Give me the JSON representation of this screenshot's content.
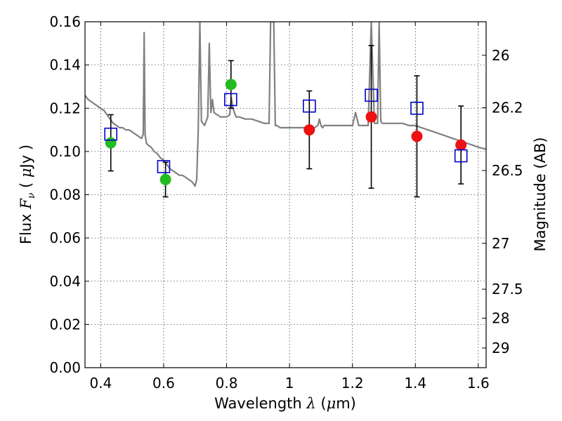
{
  "chart_data": {
    "type": "scatter",
    "xlabel": {
      "prefix": "Wavelength  ",
      "symbol": "λ",
      "unit_open": " (",
      "unit_mu": "μ",
      "unit_rest": "m)"
    },
    "ylabel": {
      "prefix": "Flux  ",
      "symbol": "F",
      "sub": "ν",
      "unit_open": "  ( ",
      "unit_mu": "μ",
      "unit_rest": "Jy )"
    },
    "y2label": "Magnitude (AB)",
    "xlim": [
      0.35,
      1.625
    ],
    "ylim": [
      0.0,
      0.16
    ],
    "grid": true,
    "xticks": [
      {
        "value": 0.4,
        "label": "0.4"
      },
      {
        "value": 0.6,
        "label": "0.6"
      },
      {
        "value": 0.8,
        "label": "0.8"
      },
      {
        "value": 1.0,
        "label": "1"
      },
      {
        "value": 1.2,
        "label": "1.2"
      },
      {
        "value": 1.4,
        "label": "1.4"
      },
      {
        "value": 1.6,
        "label": "1.6"
      }
    ],
    "yticks": [
      {
        "value": 0.0,
        "label": "0.00"
      },
      {
        "value": 0.02,
        "label": "0.02"
      },
      {
        "value": 0.04,
        "label": "0.04"
      },
      {
        "value": 0.06,
        "label": "0.06"
      },
      {
        "value": 0.08,
        "label": "0.08"
      },
      {
        "value": 0.1,
        "label": "0.10"
      },
      {
        "value": 0.12,
        "label": "0.12"
      },
      {
        "value": 0.14,
        "label": "0.14"
      },
      {
        "value": 0.16,
        "label": "0.16"
      }
    ],
    "y2ticks": [
      {
        "flux": 0.1445,
        "label": "26"
      },
      {
        "flux": 0.1202,
        "label": "26.2"
      },
      {
        "flux": 0.0912,
        "label": "26.5"
      },
      {
        "flux": 0.0575,
        "label": "27"
      },
      {
        "flux": 0.0363,
        "label": "27.5"
      },
      {
        "flux": 0.0229,
        "label": "28"
      },
      {
        "flux": 0.0091,
        "label": "29"
      }
    ],
    "series": [
      {
        "kind": "model-spectrum",
        "color": "#808080",
        "x": [
          0.35,
          0.36,
          0.37,
          0.38,
          0.39,
          0.4,
          0.41,
          0.42,
          0.43,
          0.44,
          0.45,
          0.46,
          0.47,
          0.48,
          0.49,
          0.5,
          0.51,
          0.52,
          0.53,
          0.535,
          0.538,
          0.541,
          0.545,
          0.55,
          0.56,
          0.57,
          0.58,
          0.59,
          0.6,
          0.61,
          0.62,
          0.63,
          0.64,
          0.65,
          0.66,
          0.67,
          0.68,
          0.69,
          0.695,
          0.7,
          0.705,
          0.71,
          0.715,
          0.72,
          0.73,
          0.74,
          0.745,
          0.75,
          0.755,
          0.76,
          0.77,
          0.78,
          0.79,
          0.8,
          0.81,
          0.815,
          0.82,
          0.825,
          0.83,
          0.84,
          0.86,
          0.88,
          0.9,
          0.92,
          0.935,
          0.94,
          0.95,
          0.955,
          0.96,
          0.97,
          0.98,
          1.0,
          1.02,
          1.04,
          1.06,
          1.08,
          1.09,
          1.095,
          1.1,
          1.105,
          1.11,
          1.12,
          1.14,
          1.16,
          1.18,
          1.2,
          1.21,
          1.22,
          1.23,
          1.24,
          1.25,
          1.26,
          1.27,
          1.28,
          1.285,
          1.29,
          1.295,
          1.3,
          1.32,
          1.34,
          1.36,
          1.38,
          1.4,
          1.42,
          1.44,
          1.46,
          1.48,
          1.5,
          1.52,
          1.54,
          1.56,
          1.58,
          1.6,
          1.625
        ],
        "y": [
          0.126,
          0.124,
          0.123,
          0.122,
          0.121,
          0.12,
          0.119,
          0.117,
          0.115,
          0.113,
          0.112,
          0.111,
          0.111,
          0.11,
          0.11,
          0.109,
          0.108,
          0.107,
          0.106,
          0.108,
          0.155,
          0.108,
          0.104,
          0.103,
          0.102,
          0.1,
          0.099,
          0.097,
          0.096,
          0.094,
          0.092,
          0.091,
          0.09,
          0.089,
          0.089,
          0.088,
          0.087,
          0.086,
          0.085,
          0.084,
          0.087,
          0.11,
          0.16,
          0.114,
          0.112,
          0.116,
          0.15,
          0.118,
          0.124,
          0.118,
          0.117,
          0.116,
          0.116,
          0.116,
          0.117,
          0.125,
          0.12,
          0.118,
          0.116,
          0.116,
          0.115,
          0.115,
          0.114,
          0.113,
          0.113,
          0.16,
          0.16,
          0.112,
          0.112,
          0.111,
          0.111,
          0.111,
          0.111,
          0.111,
          0.111,
          0.111,
          0.112,
          0.115,
          0.112,
          0.111,
          0.112,
          0.112,
          0.112,
          0.112,
          0.112,
          0.112,
          0.118,
          0.112,
          0.112,
          0.112,
          0.112,
          0.16,
          0.113,
          0.113,
          0.16,
          0.114,
          0.113,
          0.113,
          0.113,
          0.113,
          0.113,
          0.112,
          0.112,
          0.111,
          0.11,
          0.109,
          0.108,
          0.107,
          0.106,
          0.105,
          0.104,
          0.103,
          0.102,
          0.101
        ]
      },
      {
        "kind": "model-bandpass",
        "color": "#0000cc",
        "x": [
          0.432,
          0.6,
          0.813,
          1.063,
          1.26,
          1.405,
          1.545
        ],
        "y": [
          0.108,
          0.093,
          0.124,
          0.121,
          0.126,
          0.12,
          0.098
        ]
      },
      {
        "kind": "observed-optical",
        "color": "#22bb22",
        "x": [
          0.432,
          0.606,
          0.814
        ],
        "y": [
          0.104,
          0.087,
          0.131
        ],
        "yerr": [
          0.013,
          0.008,
          0.011
        ]
      },
      {
        "kind": "observed-nir",
        "color": "#ee1111",
        "x": [
          1.063,
          1.26,
          1.405,
          1.545
        ],
        "y": [
          0.11,
          0.116,
          0.107,
          0.103
        ],
        "yerr": [
          0.018,
          0.033,
          0.028,
          0.018
        ]
      }
    ]
  }
}
